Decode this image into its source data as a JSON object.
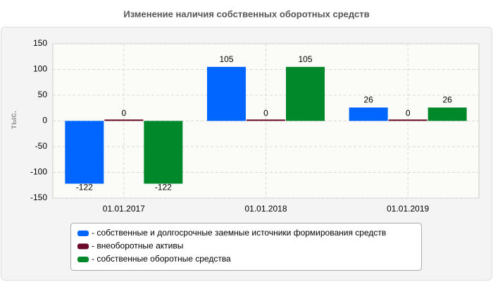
{
  "chart_data": {
    "type": "bar",
    "title": "Изменение наличия собственных оборотных средств",
    "y_label": "тыс.",
    "categories": [
      "01.01.2017",
      "01.01.2018",
      "01.01.2019"
    ],
    "series": [
      {
        "name": "- собственные и долгосрочные заемные источники формирования средств",
        "color": "#0066ff",
        "values": [
          -122,
          105,
          26
        ]
      },
      {
        "name": "- внеоборотные активы",
        "color": "#6b0a2a",
        "values": [
          0,
          0,
          0
        ]
      },
      {
        "name": "- собственные оборотные средства",
        "color": "#00882b",
        "values": [
          -122,
          105,
          26
        ]
      }
    ],
    "ylim": [
      -150,
      150
    ],
    "yticks": [
      -150,
      -100,
      -50,
      0,
      50,
      100,
      150
    ],
    "grid": true,
    "legend": "bottom"
  }
}
